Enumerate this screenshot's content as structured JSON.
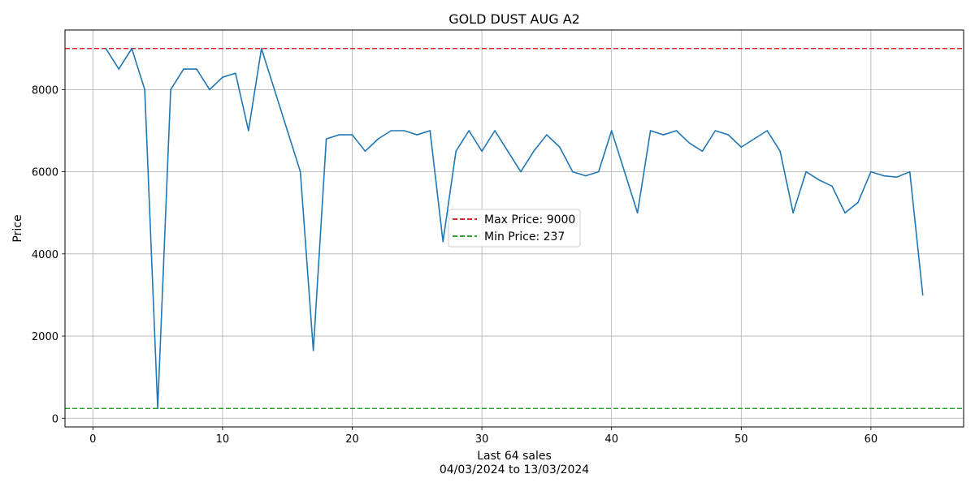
{
  "chart_data": {
    "type": "line",
    "title": "GOLD DUST AUG A2",
    "xlabel_line1": "Last 64 sales",
    "xlabel_line2": "04/03/2024 to 13/03/2024",
    "ylabel": "Price",
    "xlim": [
      -2.15,
      67.15
    ],
    "ylim": [
      -212,
      9450
    ],
    "xticks": [
      0,
      10,
      20,
      30,
      40,
      50,
      60
    ],
    "yticks": [
      0,
      2000,
      4000,
      6000,
      8000
    ],
    "grid": true,
    "legend_placement": "center",
    "series": [
      {
        "color": "#1f77b4",
        "x": [
          1,
          2,
          3,
          4,
          5,
          6,
          7,
          8,
          9,
          10,
          11,
          12,
          13,
          14,
          15,
          16,
          17,
          18,
          19,
          20,
          21,
          22,
          23,
          24,
          25,
          26,
          27,
          28,
          29,
          30,
          31,
          32,
          33,
          34,
          35,
          36,
          37,
          38,
          39,
          40,
          41,
          42,
          43,
          44,
          45,
          46,
          47,
          48,
          49,
          50,
          51,
          52,
          53,
          54,
          55,
          56,
          57,
          58,
          59,
          60,
          61,
          62,
          63,
          64
        ],
        "values": [
          9000,
          8500,
          9000,
          8000,
          237,
          8000,
          8500,
          8500,
          8000,
          8300,
          8400,
          7000,
          9000,
          8000,
          7000,
          6000,
          1650,
          6800,
          6900,
          6900,
          6500,
          6800,
          7000,
          7000,
          6900,
          7000,
          4300,
          6500,
          7000,
          6500,
          7000,
          6500,
          6000,
          6500,
          6900,
          6600,
          6000,
          5900,
          6000,
          7000,
          6000,
          5000,
          7000,
          6900,
          7000,
          6700,
          6500,
          7000,
          6900,
          6600,
          6800,
          7000,
          6500,
          5000,
          6000,
          5800,
          5650,
          5000,
          5250,
          6000,
          5900,
          5870,
          6000,
          3000
        ]
      }
    ],
    "reference_lines": [
      {
        "name": "Max Price: 9000",
        "value": 9000,
        "color": "#d62728"
      },
      {
        "name": "Min Price: 237",
        "value": 237,
        "color": "#2ca02c"
      }
    ]
  }
}
